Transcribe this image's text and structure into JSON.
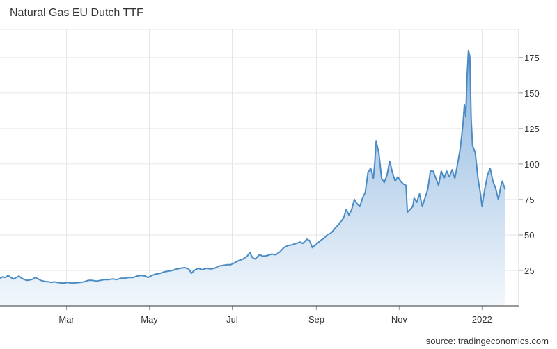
{
  "title": "Natural Gas EU Dutch TTF",
  "source": "source: tradingeconomics.com",
  "colors": {
    "line": "#4a8bc4",
    "fill_top": "#8bb5de",
    "fill_bottom": "#f2f7fc",
    "grid": "#e6e6e6"
  },
  "chart_data": {
    "type": "area",
    "title": "Natural Gas EU Dutch TTF",
    "xlabel": "",
    "ylabel": "",
    "ylim": [
      0,
      195
    ],
    "y_ticks": [
      25,
      50,
      75,
      100,
      125,
      150,
      175
    ],
    "x_ticks": [
      {
        "label": "Mar",
        "x": "2021-03-01"
      },
      {
        "label": "May",
        "x": "2021-05-01"
      },
      {
        "label": "Jul",
        "x": "2021-07-01"
      },
      {
        "label": "Sep",
        "x": "2021-09-01"
      },
      {
        "label": "Nov",
        "x": "2021-11-01"
      },
      {
        "label": "2022",
        "x": "2022-01-01"
      }
    ],
    "x_range": [
      "2021-01-11",
      "2022-01-28"
    ],
    "grid": true,
    "y_axis_side": "right",
    "series": [
      {
        "points": [
          [
            "2021-01-11",
            19.5
          ],
          [
            "2021-01-13",
            20.5
          ],
          [
            "2021-01-15",
            20.0
          ],
          [
            "2021-01-17",
            21.5
          ],
          [
            "2021-01-19",
            20.0
          ],
          [
            "2021-01-21",
            19.0
          ],
          [
            "2021-01-23",
            20.0
          ],
          [
            "2021-01-25",
            21.0
          ],
          [
            "2021-01-27",
            19.5
          ],
          [
            "2021-01-29",
            18.5
          ],
          [
            "2021-01-31",
            18.0
          ],
          [
            "2021-02-02",
            18.3
          ],
          [
            "2021-02-04",
            18.8
          ],
          [
            "2021-02-06",
            20.0
          ],
          [
            "2021-02-08",
            19.0
          ],
          [
            "2021-02-10",
            18.0
          ],
          [
            "2021-02-12",
            17.5
          ],
          [
            "2021-02-14",
            17.0
          ],
          [
            "2021-02-16",
            17.0
          ],
          [
            "2021-02-18",
            16.5
          ],
          [
            "2021-02-20",
            17.0
          ],
          [
            "2021-02-22",
            16.5
          ],
          [
            "2021-02-24",
            16.3
          ],
          [
            "2021-02-26",
            16.0
          ],
          [
            "2021-02-28",
            16.2
          ],
          [
            "2021-03-02",
            16.5
          ],
          [
            "2021-03-05",
            16.0
          ],
          [
            "2021-03-08",
            16.3
          ],
          [
            "2021-03-11",
            16.5
          ],
          [
            "2021-03-14",
            17.0
          ],
          [
            "2021-03-17",
            18.0
          ],
          [
            "2021-03-20",
            18.0
          ],
          [
            "2021-03-23",
            17.5
          ],
          [
            "2021-03-26",
            18.0
          ],
          [
            "2021-03-29",
            18.5
          ],
          [
            "2021-04-01",
            18.5
          ],
          [
            "2021-04-04",
            19.0
          ],
          [
            "2021-04-07",
            18.5
          ],
          [
            "2021-04-10",
            19.5
          ],
          [
            "2021-04-13",
            19.5
          ],
          [
            "2021-04-16",
            20.0
          ],
          [
            "2021-04-19",
            20.0
          ],
          [
            "2021-04-22",
            21.0
          ],
          [
            "2021-04-25",
            21.5
          ],
          [
            "2021-04-28",
            21.0
          ],
          [
            "2021-04-30",
            20.0
          ],
          [
            "2021-05-03",
            21.5
          ],
          [
            "2021-05-06",
            22.5
          ],
          [
            "2021-05-09",
            23.0
          ],
          [
            "2021-05-12",
            24.0
          ],
          [
            "2021-05-15",
            24.5
          ],
          [
            "2021-05-18",
            25.0
          ],
          [
            "2021-05-21",
            26.0
          ],
          [
            "2021-05-24",
            26.5
          ],
          [
            "2021-05-27",
            27.0
          ],
          [
            "2021-05-30",
            26.0
          ],
          [
            "2021-06-01",
            23.0
          ],
          [
            "2021-06-03",
            25.0
          ],
          [
            "2021-06-06",
            26.5
          ],
          [
            "2021-06-09",
            25.5
          ],
          [
            "2021-06-12",
            26.5
          ],
          [
            "2021-06-15",
            26.0
          ],
          [
            "2021-06-18",
            26.5
          ],
          [
            "2021-06-21",
            28.0
          ],
          [
            "2021-06-24",
            28.5
          ],
          [
            "2021-06-27",
            29.0
          ],
          [
            "2021-06-30",
            29.0
          ],
          [
            "2021-07-03",
            30.5
          ],
          [
            "2021-07-06",
            32.0
          ],
          [
            "2021-07-09",
            33.0
          ],
          [
            "2021-07-12",
            35.0
          ],
          [
            "2021-07-14",
            37.5
          ],
          [
            "2021-07-16",
            34.0
          ],
          [
            "2021-07-18",
            33.0
          ],
          [
            "2021-07-21",
            36.0
          ],
          [
            "2021-07-24",
            35.0
          ],
          [
            "2021-07-27",
            35.5
          ],
          [
            "2021-07-30",
            36.5
          ],
          [
            "2021-08-02",
            36.0
          ],
          [
            "2021-08-05",
            38.0
          ],
          [
            "2021-08-08",
            41.0
          ],
          [
            "2021-08-11",
            42.5
          ],
          [
            "2021-08-14",
            43.0
          ],
          [
            "2021-08-17",
            44.0
          ],
          [
            "2021-08-20",
            45.0
          ],
          [
            "2021-08-22",
            44.0
          ],
          [
            "2021-08-25",
            47.0
          ],
          [
            "2021-08-27",
            46.0
          ],
          [
            "2021-08-29",
            41.0
          ],
          [
            "2021-09-01",
            43.5
          ],
          [
            "2021-09-04",
            46.0
          ],
          [
            "2021-09-07",
            48.0
          ],
          [
            "2021-09-09",
            50.0
          ],
          [
            "2021-09-12",
            51.5
          ],
          [
            "2021-09-15",
            55.0
          ],
          [
            "2021-09-18",
            58.0
          ],
          [
            "2021-09-21",
            62.0
          ],
          [
            "2021-09-23",
            68.0
          ],
          [
            "2021-09-25",
            64.0
          ],
          [
            "2021-09-27",
            68.0
          ],
          [
            "2021-09-29",
            75.0
          ],
          [
            "2021-10-01",
            72.0
          ],
          [
            "2021-10-03",
            70.0
          ],
          [
            "2021-10-05",
            76.0
          ],
          [
            "2021-10-07",
            80.0
          ],
          [
            "2021-10-09",
            94.0
          ],
          [
            "2021-10-11",
            97.0
          ],
          [
            "2021-10-13",
            90.0
          ],
          [
            "2021-10-14",
            101.0
          ],
          [
            "2021-10-15",
            116.0
          ],
          [
            "2021-10-17",
            108.0
          ],
          [
            "2021-10-19",
            90.0
          ],
          [
            "2021-10-21",
            87.0
          ],
          [
            "2021-10-23",
            92.0
          ],
          [
            "2021-10-25",
            102.0
          ],
          [
            "2021-10-27",
            94.0
          ],
          [
            "2021-10-29",
            88.0
          ],
          [
            "2021-10-31",
            91.0
          ],
          [
            "2021-11-02",
            88.0
          ],
          [
            "2021-11-04",
            86.0
          ],
          [
            "2021-11-06",
            85.0
          ],
          [
            "2021-11-07",
            66.0
          ],
          [
            "2021-11-09",
            68.0
          ],
          [
            "2021-11-11",
            70.0
          ],
          [
            "2021-11-12",
            76.0
          ],
          [
            "2021-11-14",
            73.0
          ],
          [
            "2021-11-16",
            79.0
          ],
          [
            "2021-11-18",
            70.0
          ],
          [
            "2021-11-20",
            76.0
          ],
          [
            "2021-11-22",
            82.0
          ],
          [
            "2021-11-24",
            95.0
          ],
          [
            "2021-11-26",
            95.0
          ],
          [
            "2021-11-28",
            90.0
          ],
          [
            "2021-11-30",
            85.0
          ],
          [
            "2021-12-02",
            95.0
          ],
          [
            "2021-12-04",
            90.0
          ],
          [
            "2021-12-06",
            95.0
          ],
          [
            "2021-12-08",
            91.0
          ],
          [
            "2021-12-10",
            96.0
          ],
          [
            "2021-12-12",
            90.0
          ],
          [
            "2021-12-14",
            100.0
          ],
          [
            "2021-12-16",
            111.0
          ],
          [
            "2021-12-18",
            128.0
          ],
          [
            "2021-12-19",
            142.0
          ],
          [
            "2021-12-20",
            133.0
          ],
          [
            "2021-12-21",
            162.0
          ],
          [
            "2021-12-22",
            180.0
          ],
          [
            "2021-12-23",
            176.0
          ],
          [
            "2021-12-24",
            132.0
          ],
          [
            "2021-12-25",
            113.0
          ],
          [
            "2021-12-27",
            108.0
          ],
          [
            "2021-12-29",
            90.0
          ],
          [
            "2021-12-31",
            78.0
          ],
          [
            "2022-01-01",
            70.0
          ],
          [
            "2022-01-03",
            82.0
          ],
          [
            "2022-01-05",
            92.0
          ],
          [
            "2022-01-07",
            97.0
          ],
          [
            "2022-01-09",
            88.0
          ],
          [
            "2022-01-11",
            83.0
          ],
          [
            "2022-01-13",
            75.0
          ],
          [
            "2022-01-15",
            85.0
          ],
          [
            "2022-01-16",
            88.0
          ],
          [
            "2022-01-18",
            82.0
          ]
        ]
      }
    ]
  }
}
